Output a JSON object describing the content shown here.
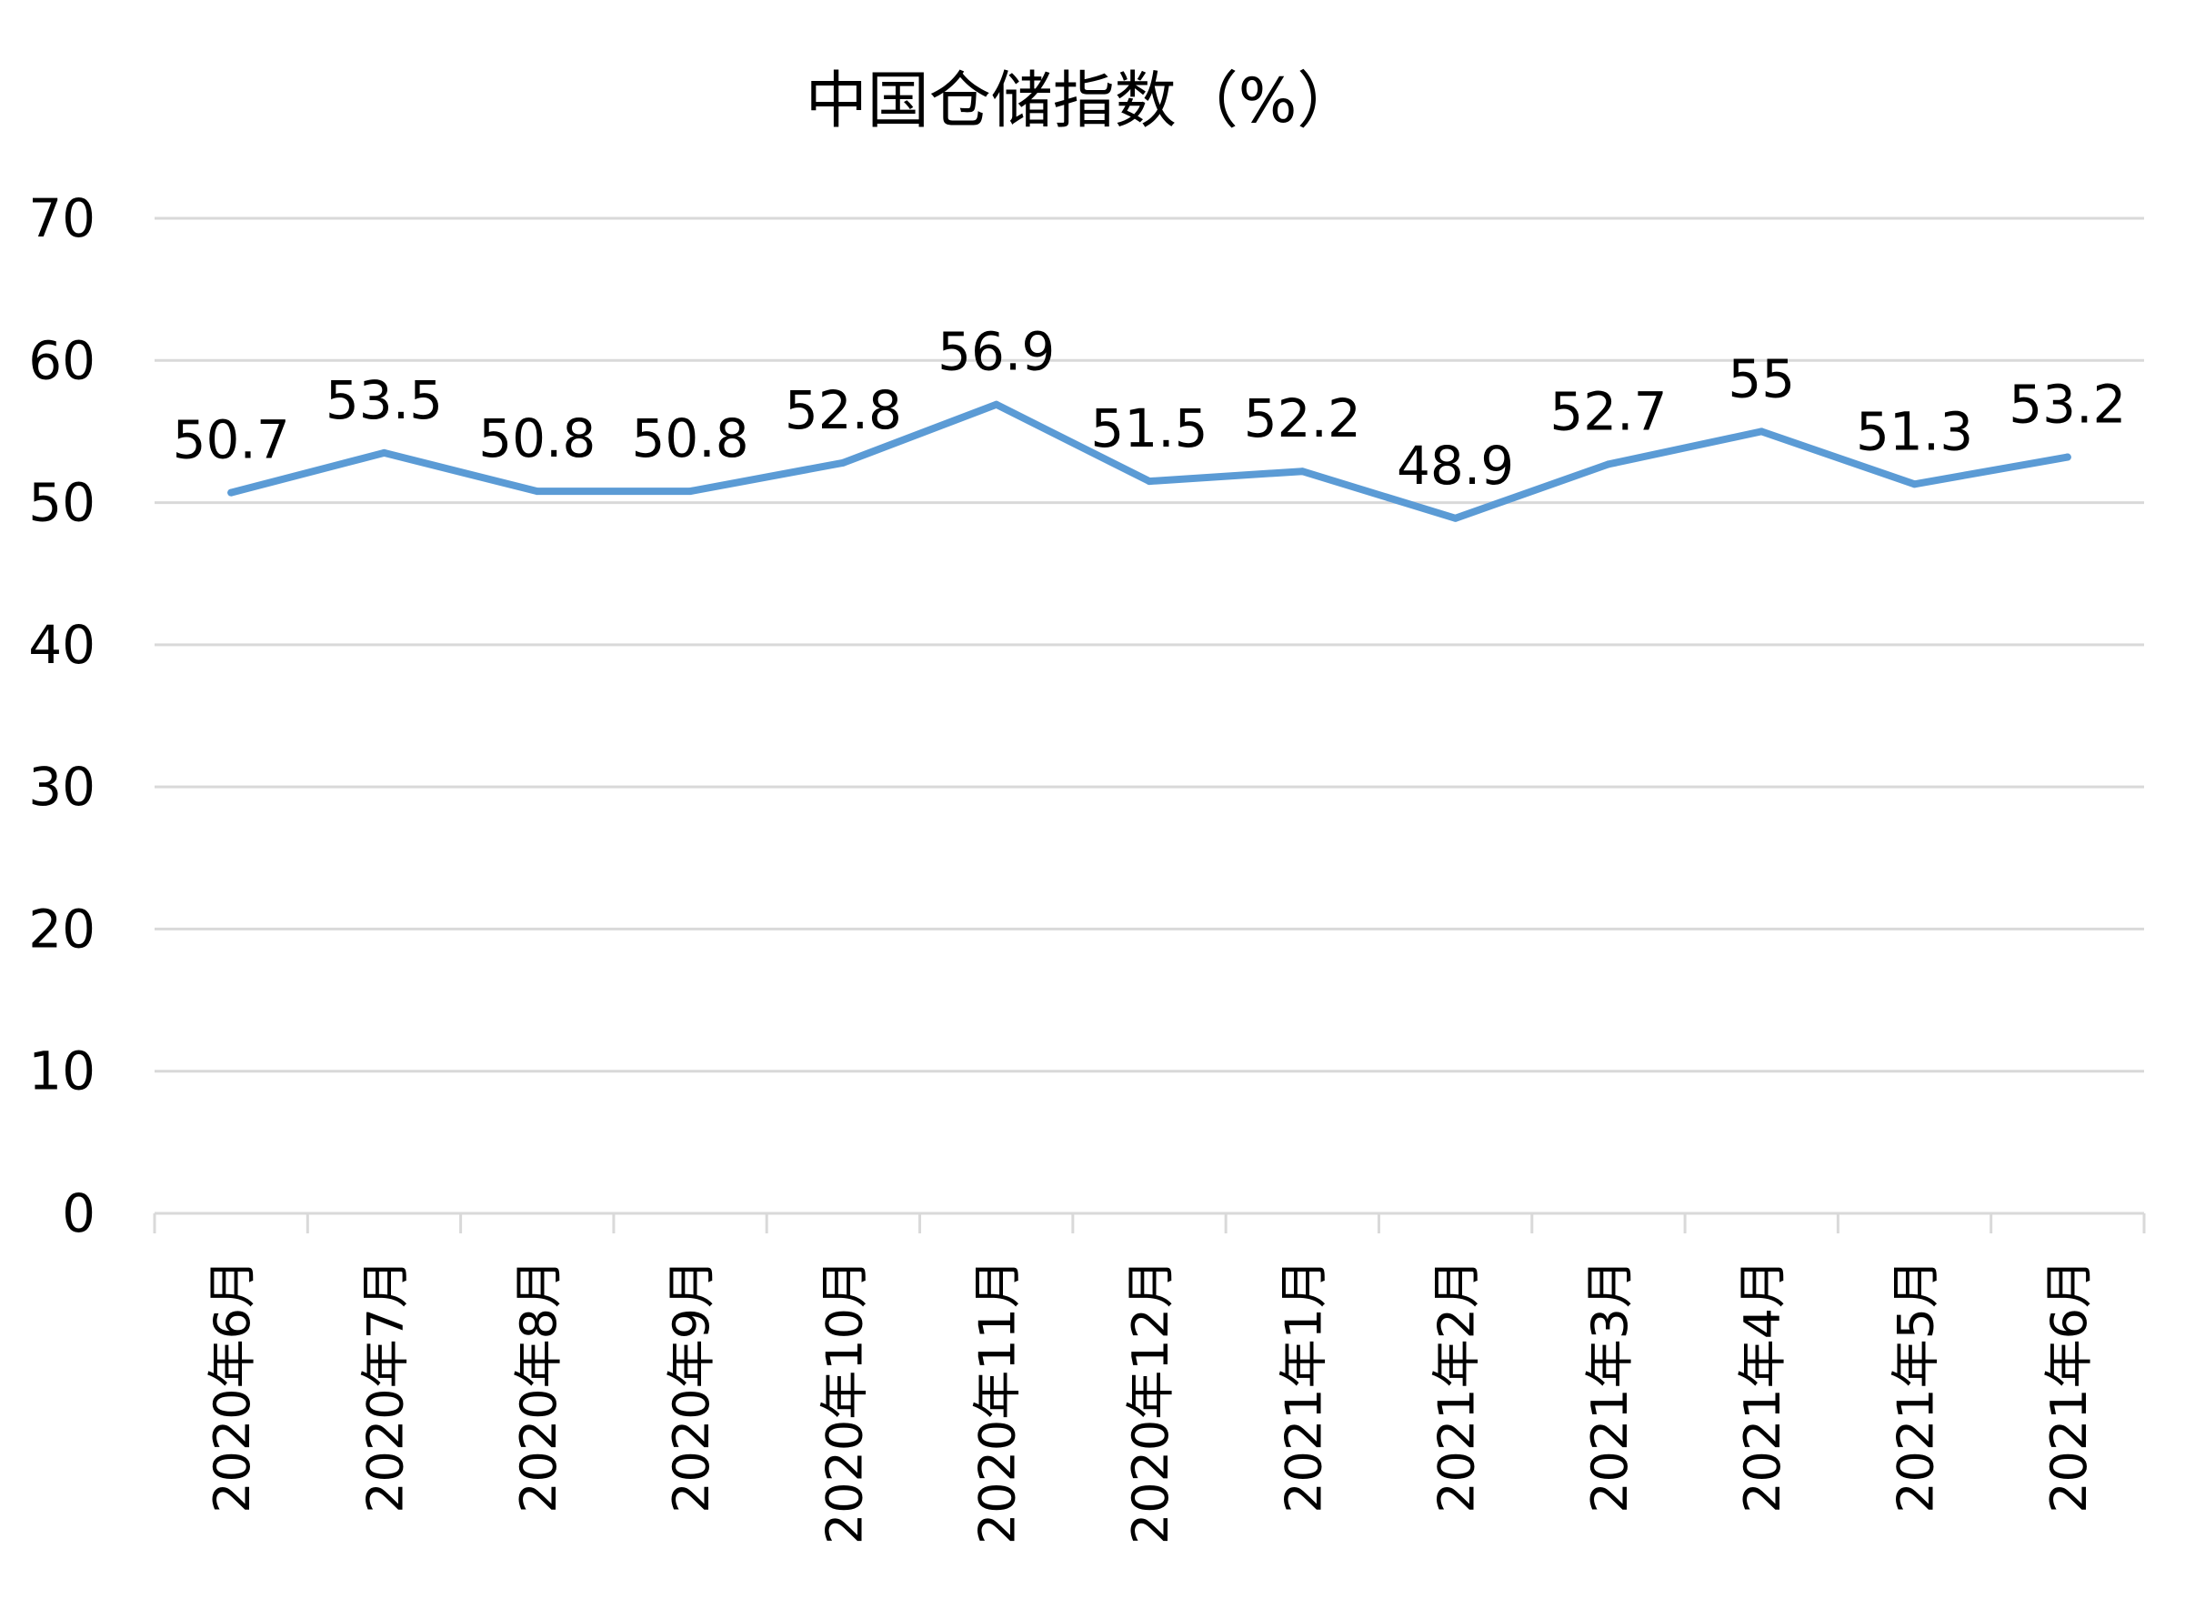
{
  "chart_data": {
    "type": "line",
    "title": "中国仓储指数（%）",
    "categories": [
      "2020年6月",
      "2020年7月",
      "2020年8月",
      "2020年9月",
      "2020年10月",
      "2020年11月",
      "2020年12月",
      "2021年1月",
      "2021年2月",
      "2021年3月",
      "2021年4月",
      "2021年5月",
      "2021年6月"
    ],
    "series": [
      {
        "values": [
          50.7,
          53.5,
          50.8,
          50.8,
          52.8,
          56.9,
          51.5,
          52.2,
          48.9,
          52.7,
          55,
          51.3,
          53.2
        ]
      }
    ],
    "data_labels": [
      "50.7",
      "53.5",
      "50.8",
      "50.8",
      "52.8",
      "56.9",
      "51.5",
      "52.2",
      "48.9",
      "52.7",
      "55",
      "51.3",
      "53.2"
    ],
    "ylim": [
      0,
      70
    ],
    "yticks": [
      "0",
      "10",
      "20",
      "30",
      "40",
      "50",
      "60",
      "70"
    ],
    "grid": true,
    "legend": "none",
    "colors": {
      "line": "#5b9bd5",
      "grid": "#d9d9d9"
    }
  }
}
